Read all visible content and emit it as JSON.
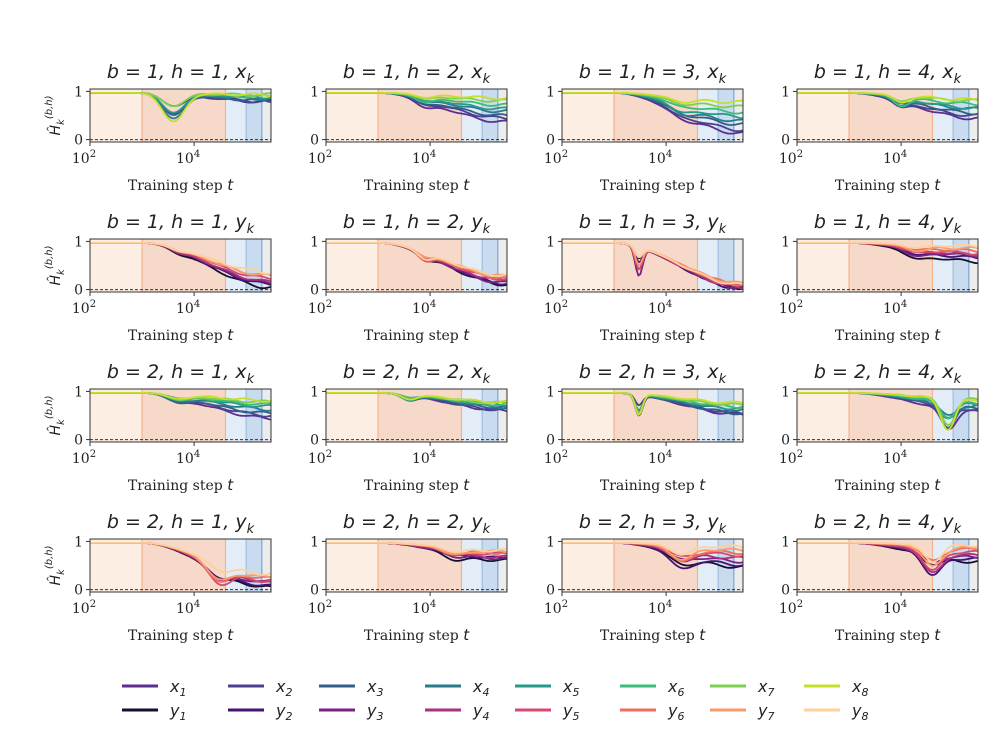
{
  "chart_data": {
    "type": "line",
    "x_scale": "log",
    "xlabel": "Training step",
    "xlabel_var": "t",
    "ylabel": "Ĥ",
    "ylabel_sub": "k",
    "ylabel_sup": "(b,h)",
    "xlim": [
      100,
      300000
    ],
    "ylim": [
      -0.05,
      1.05
    ],
    "y_ticks": [
      0,
      1
    ],
    "x_ticks": [
      {
        "base": "10",
        "exp": "2",
        "value": 100
      },
      {
        "base": "10",
        "exp": "4",
        "value": 10000
      }
    ],
    "reference_line": {
      "y": 0,
      "style": "dashed"
    },
    "phases": [
      {
        "from": 100,
        "to": 1000,
        "color": "#fdeee3"
      },
      {
        "from": 1000,
        "to": 40000,
        "color": "#f6d9c9"
      },
      {
        "from": 40000,
        "to": 100000,
        "color": "#e3edf7"
      },
      {
        "from": 100000,
        "to": 200000,
        "color": "#c9dbee"
      },
      {
        "from": 200000,
        "to": 300000,
        "color": "#ececec"
      }
    ],
    "phase_boundaries": [
      1000,
      40000,
      100000,
      200000
    ],
    "colors": {
      "x": [
        "#5c2f8f",
        "#4a4190",
        "#355d8c",
        "#2b7b8c",
        "#259a8a",
        "#3dbb78",
        "#7fcf4e",
        "#c7de2c"
      ],
      "y": [
        "#170f2f",
        "#451373",
        "#782282",
        "#a83280",
        "#d5496f",
        "#ef6e5a",
        "#fa9b6d",
        "#fdd09c"
      ]
    },
    "legend": {
      "x": [
        {
          "name": "x",
          "sub": "1"
        },
        {
          "name": "x",
          "sub": "2"
        },
        {
          "name": "x",
          "sub": "3"
        },
        {
          "name": "x",
          "sub": "4"
        },
        {
          "name": "x",
          "sub": "5"
        },
        {
          "name": "x",
          "sub": "6"
        },
        {
          "name": "x",
          "sub": "7"
        },
        {
          "name": "x",
          "sub": "8"
        }
      ],
      "y": [
        {
          "name": "y",
          "sub": "1"
        },
        {
          "name": "y",
          "sub": "2"
        },
        {
          "name": "y",
          "sub": "3"
        },
        {
          "name": "y",
          "sub": "4"
        },
        {
          "name": "y",
          "sub": "5"
        },
        {
          "name": "y",
          "sub": "6"
        },
        {
          "name": "y",
          "sub": "7"
        },
        {
          "name": "y",
          "sub": "8"
        }
      ]
    },
    "panels": [
      {
        "title": "b = 1, h = 1, x",
        "title_sub": "k",
        "group": "x",
        "dip": {
          "at": 4000,
          "depth": 0.4,
          "width": 0.3
        },
        "end_range": [
          0.78,
          0.95
        ]
      },
      {
        "title": "b = 1, h = 2, x",
        "title_sub": "k",
        "group": "x",
        "dip": {
          "at": 8000,
          "depth": 0.1,
          "width": 0.25
        },
        "end_range": [
          0.35,
          0.85
        ]
      },
      {
        "title": "b = 1, h = 3, x",
        "title_sub": "k",
        "group": "x",
        "dip": {
          "at": 20000,
          "depth": 0.1,
          "width": 0.3
        },
        "end_range": [
          0.1,
          0.78
        ]
      },
      {
        "title": "b = 1, h = 4, x",
        "title_sub": "k",
        "group": "x",
        "dip": {
          "at": 10000,
          "depth": 0.15,
          "width": 0.2
        },
        "end_range": [
          0.45,
          0.85
        ]
      },
      {
        "title": "b = 1, h = 1, y",
        "title_sub": "k",
        "group": "y",
        "dip": {
          "at": 5000,
          "depth": 0.05,
          "width": 0.2
        },
        "end_range": [
          0.05,
          0.35
        ]
      },
      {
        "title": "b = 1, h = 2, y",
        "title_sub": "k",
        "group": "y",
        "dip": {
          "at": 8000,
          "depth": 0.1,
          "width": 0.2
        },
        "end_range": [
          0.1,
          0.3
        ]
      },
      {
        "title": "b = 1, h = 3, y",
        "title_sub": "k",
        "group": "y",
        "dip": {
          "at": 3000,
          "depth": 0.4,
          "width": 0.1
        },
        "end_range": [
          0.02,
          0.12
        ]
      },
      {
        "title": "b = 1, h = 4, y",
        "title_sub": "k",
        "group": "y",
        "dip": {
          "at": 20000,
          "depth": 0.1,
          "width": 0.3
        },
        "end_range": [
          0.6,
          0.9
        ]
      },
      {
        "title": "b = 2, h = 1, x",
        "title_sub": "k",
        "group": "x",
        "dip": {
          "at": 5000,
          "depth": 0.1,
          "width": 0.3
        },
        "end_range": [
          0.45,
          0.82
        ]
      },
      {
        "title": "b = 2, h = 2, x",
        "title_sub": "k",
        "group": "x",
        "dip": {
          "at": 4000,
          "depth": 0.1,
          "width": 0.2
        },
        "end_range": [
          0.6,
          0.8
        ]
      },
      {
        "title": "b = 2, h = 3, x",
        "title_sub": "k",
        "group": "x",
        "dip": {
          "at": 3000,
          "depth": 0.35,
          "width": 0.1
        },
        "end_range": [
          0.5,
          0.75
        ]
      },
      {
        "title": "b = 2, h = 4, x",
        "title_sub": "k",
        "group": "x",
        "dip": {
          "at": 80000,
          "depth": 0.45,
          "width": 0.2
        },
        "end_range": [
          0.6,
          0.85
        ]
      },
      {
        "title": "b = 2, h = 1, y",
        "title_sub": "k",
        "group": "y",
        "dip": {
          "at": 30000,
          "depth": 0.25,
          "width": 0.3
        },
        "end_range": [
          0.05,
          0.3
        ]
      },
      {
        "title": "b = 2, h = 2, y",
        "title_sub": "k",
        "group": "y",
        "dip": {
          "at": 30000,
          "depth": 0.1,
          "width": 0.3
        },
        "end_range": [
          0.6,
          0.8
        ]
      },
      {
        "title": "b = 2, h = 3, y",
        "title_sub": "k",
        "group": "y",
        "dip": {
          "at": 20000,
          "depth": 0.2,
          "width": 0.3
        },
        "end_range": [
          0.45,
          0.9
        ]
      },
      {
        "title": "b = 2, h = 4, y",
        "title_sub": "k",
        "group": "y",
        "dip": {
          "at": 40000,
          "depth": 0.3,
          "width": 0.25
        },
        "end_range": [
          0.6,
          0.9
        ]
      }
    ]
  }
}
